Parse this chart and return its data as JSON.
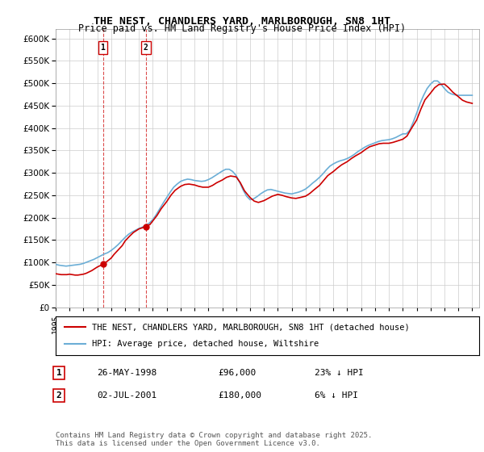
{
  "title": "THE NEST, CHANDLERS YARD, MARLBOROUGH, SN8 1HT",
  "subtitle": "Price paid vs. HM Land Registry's House Price Index (HPI)",
  "legend_line1": "THE NEST, CHANDLERS YARD, MARLBOROUGH, SN8 1HT (detached house)",
  "legend_line2": "HPI: Average price, detached house, Wiltshire",
  "footer": "Contains HM Land Registry data © Crown copyright and database right 2025.\nThis data is licensed under the Open Government Licence v3.0.",
  "sale1_label": "1",
  "sale1_date": "26-MAY-1998",
  "sale1_price": "£96,000",
  "sale1_hpi": "23% ↓ HPI",
  "sale2_label": "2",
  "sale2_date": "02-JUL-2001",
  "sale2_price": "£180,000",
  "sale2_hpi": "6% ↓ HPI",
  "sale1_x": 1998.4,
  "sale1_y": 96000,
  "sale2_x": 2001.5,
  "sale2_y": 180000,
  "hpi_color": "#6baed6",
  "price_color": "#cc0000",
  "vline_color": "#cc0000",
  "background_color": "#ffffff",
  "ylim": [
    0,
    620000
  ],
  "xlim_start": 1995,
  "xlim_end": 2025.5,
  "ytick_step": 50000,
  "xticks": [
    1995,
    1996,
    1997,
    1998,
    1999,
    2000,
    2001,
    2002,
    2003,
    2004,
    2005,
    2006,
    2007,
    2008,
    2009,
    2010,
    2011,
    2012,
    2013,
    2014,
    2015,
    2016,
    2017,
    2018,
    2019,
    2020,
    2021,
    2022,
    2023,
    2024,
    2025
  ],
  "hpi_x": [
    1995.0,
    1995.25,
    1995.5,
    1995.75,
    1996.0,
    1996.25,
    1996.5,
    1996.75,
    1997.0,
    1997.25,
    1997.5,
    1997.75,
    1998.0,
    1998.25,
    1998.5,
    1998.75,
    1999.0,
    1999.25,
    1999.5,
    1999.75,
    2000.0,
    2000.25,
    2000.5,
    2000.75,
    2001.0,
    2001.25,
    2001.5,
    2001.75,
    2002.0,
    2002.25,
    2002.5,
    2002.75,
    2003.0,
    2003.25,
    2003.5,
    2003.75,
    2004.0,
    2004.25,
    2004.5,
    2004.75,
    2005.0,
    2005.25,
    2005.5,
    2005.75,
    2006.0,
    2006.25,
    2006.5,
    2006.75,
    2007.0,
    2007.25,
    2007.5,
    2007.75,
    2008.0,
    2008.25,
    2008.5,
    2008.75,
    2009.0,
    2009.25,
    2009.5,
    2009.75,
    2010.0,
    2010.25,
    2010.5,
    2010.75,
    2011.0,
    2011.25,
    2011.5,
    2011.75,
    2012.0,
    2012.25,
    2012.5,
    2012.75,
    2013.0,
    2013.25,
    2013.5,
    2013.75,
    2014.0,
    2014.25,
    2014.5,
    2014.75,
    2015.0,
    2015.25,
    2015.5,
    2015.75,
    2016.0,
    2016.25,
    2016.5,
    2016.75,
    2017.0,
    2017.25,
    2017.5,
    2017.75,
    2018.0,
    2018.25,
    2018.5,
    2018.75,
    2019.0,
    2019.25,
    2019.5,
    2019.75,
    2020.0,
    2020.25,
    2020.5,
    2020.75,
    2021.0,
    2021.25,
    2021.5,
    2021.75,
    2022.0,
    2022.25,
    2022.5,
    2022.75,
    2023.0,
    2023.25,
    2023.5,
    2023.75,
    2024.0,
    2024.25,
    2024.5,
    2024.75,
    2025.0
  ],
  "hpi_y": [
    96000,
    94000,
    93000,
    92000,
    93000,
    94000,
    95000,
    96000,
    98000,
    101000,
    104000,
    107000,
    111000,
    115000,
    119000,
    122000,
    127000,
    133000,
    140000,
    148000,
    156000,
    163000,
    168000,
    172000,
    176000,
    179000,
    183000,
    188000,
    196000,
    207000,
    220000,
    233000,
    245000,
    257000,
    268000,
    275000,
    281000,
    284000,
    286000,
    285000,
    283000,
    282000,
    281000,
    282000,
    285000,
    289000,
    294000,
    299000,
    304000,
    308000,
    308000,
    303000,
    294000,
    279000,
    262000,
    248000,
    240000,
    242000,
    247000,
    253000,
    258000,
    262000,
    263000,
    261000,
    259000,
    257000,
    255000,
    254000,
    253000,
    255000,
    257000,
    260000,
    264000,
    270000,
    277000,
    283000,
    290000,
    298000,
    307000,
    315000,
    320000,
    324000,
    327000,
    329000,
    332000,
    336000,
    341000,
    347000,
    352000,
    357000,
    361000,
    364000,
    367000,
    370000,
    372000,
    373000,
    374000,
    376000,
    379000,
    383000,
    387000,
    387000,
    395000,
    413000,
    433000,
    455000,
    473000,
    488000,
    498000,
    505000,
    505000,
    498000,
    488000,
    480000,
    476000,
    474000,
    473000,
    473000,
    473000,
    473000,
    473000
  ],
  "price_x": [
    1995.0,
    1995.2,
    1995.4,
    1995.6,
    1995.8,
    1996.0,
    1996.2,
    1996.4,
    1996.6,
    1996.8,
    1997.0,
    1997.2,
    1997.4,
    1997.6,
    1997.8,
    1998.0,
    1998.4,
    1998.6,
    1998.8,
    1999.0,
    1999.2,
    1999.5,
    1999.8,
    2000.0,
    2000.3,
    2000.6,
    2001.0,
    2001.5,
    2001.8,
    2002.0,
    2002.3,
    2002.6,
    2003.0,
    2003.3,
    2003.6,
    2004.0,
    2004.3,
    2004.6,
    2005.0,
    2005.3,
    2005.6,
    2006.0,
    2006.3,
    2006.6,
    2007.0,
    2007.3,
    2007.6,
    2008.0,
    2008.3,
    2008.6,
    2009.0,
    2009.3,
    2009.6,
    2010.0,
    2010.3,
    2010.6,
    2011.0,
    2011.3,
    2011.6,
    2012.0,
    2012.3,
    2012.6,
    2013.0,
    2013.3,
    2013.6,
    2014.0,
    2014.3,
    2014.6,
    2015.0,
    2015.3,
    2015.6,
    2016.0,
    2016.3,
    2016.6,
    2017.0,
    2017.3,
    2017.6,
    2018.0,
    2018.3,
    2018.6,
    2019.0,
    2019.3,
    2019.6,
    2020.0,
    2020.3,
    2020.6,
    2021.0,
    2021.3,
    2021.6,
    2022.0,
    2022.3,
    2022.6,
    2023.0,
    2023.3,
    2023.6,
    2024.0,
    2024.3,
    2024.6,
    2025.0
  ],
  "price_y": [
    75000,
    74000,
    73000,
    73000,
    73000,
    74000,
    73000,
    72000,
    72000,
    73000,
    74000,
    76000,
    79000,
    82000,
    86000,
    90000,
    96000,
    100000,
    105000,
    110000,
    118000,
    128000,
    138000,
    148000,
    158000,
    167000,
    175000,
    180000,
    185000,
    193000,
    205000,
    220000,
    236000,
    250000,
    261000,
    270000,
    274000,
    275000,
    273000,
    270000,
    268000,
    268000,
    272000,
    278000,
    284000,
    290000,
    293000,
    291000,
    278000,
    260000,
    245000,
    237000,
    234000,
    238000,
    243000,
    248000,
    252000,
    250000,
    247000,
    244000,
    243000,
    245000,
    248000,
    254000,
    262000,
    272000,
    283000,
    294000,
    303000,
    311000,
    318000,
    325000,
    332000,
    338000,
    345000,
    352000,
    358000,
    362000,
    365000,
    366000,
    366000,
    368000,
    371000,
    375000,
    382000,
    398000,
    418000,
    442000,
    463000,
    478000,
    490000,
    497000,
    498000,
    490000,
    480000,
    470000,
    462000,
    458000,
    455000
  ]
}
